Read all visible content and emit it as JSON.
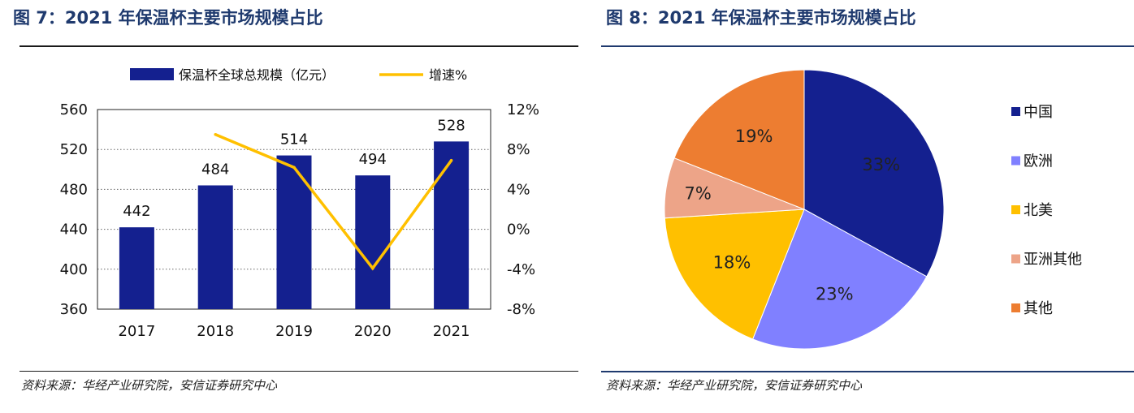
{
  "left_panel": {
    "title": "图 7：2021 年保温杯主要市场规模占比",
    "source": "资料来源：华经产业研究院，安信证券研究中心"
  },
  "right_panel": {
    "title": "图 8：2021 年保温杯主要市场规模占比",
    "source": "资料来源：华经产业研究院，安信证券研究中心"
  },
  "chart_data": [
    {
      "type": "bar",
      "categories": [
        "2017",
        "2018",
        "2019",
        "2020",
        "2021"
      ],
      "series": [
        {
          "name": "保温杯全球总规模（亿元）",
          "values": [
            442,
            484,
            514,
            494,
            528
          ],
          "color": "#14208f",
          "axis": "left",
          "data_labels": [
            "442",
            "484",
            "514",
            "494",
            "528"
          ]
        },
        {
          "name": "增速%",
          "type": "line",
          "values": [
            null,
            9.5,
            6.2,
            -3.9,
            6.9
          ],
          "color": "#ffc000",
          "axis": "right"
        }
      ],
      "ylim": [
        360,
        560
      ],
      "yticks": [
        "560",
        "520",
        "480",
        "440",
        "400",
        "360"
      ],
      "y2lim": [
        -8,
        12
      ],
      "y2ticks": [
        "12%",
        "8%",
        "4%",
        "0%",
        "-4%",
        "-8%"
      ],
      "grid": "dotted horizontal",
      "legend": "top"
    },
    {
      "type": "pie",
      "labels": [
        "中国",
        "欧洲",
        "北美",
        "亚洲其他",
        "其他"
      ],
      "values": [
        33,
        23,
        18,
        7,
        19
      ],
      "display": [
        "33%",
        "23%",
        "18%",
        "7%",
        "19%"
      ],
      "colors": [
        "#14208f",
        "#8080ff",
        "#ffc000",
        "#eda488",
        "#ed7d31"
      ],
      "label_colors": [
        "#ffffff",
        "#ffffff",
        "#222222",
        "#222222",
        "#222222"
      ],
      "legend": "right"
    }
  ]
}
